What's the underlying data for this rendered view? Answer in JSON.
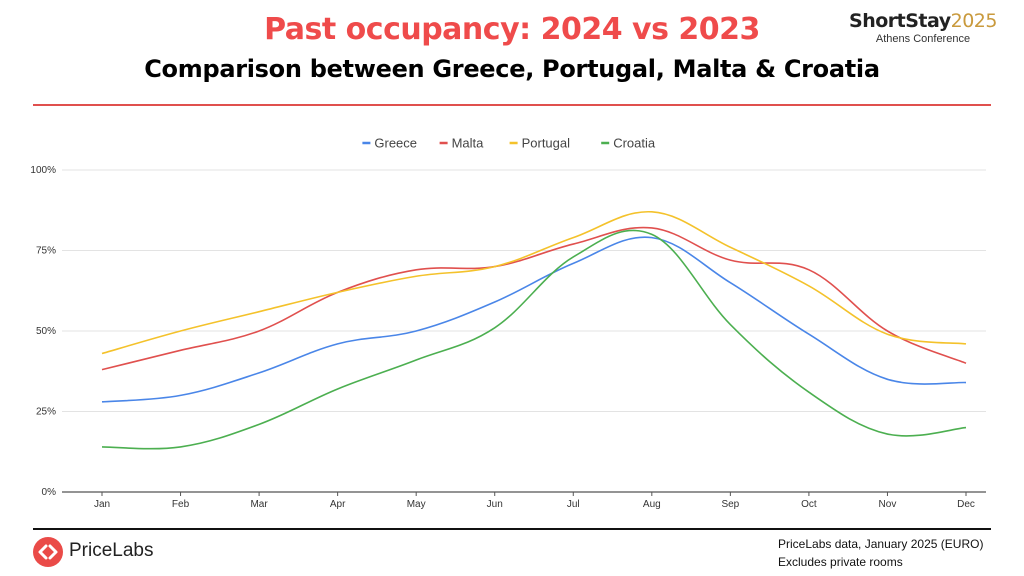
{
  "header": {
    "title": "Past occupancy: 2024 vs 2023",
    "subtitle": "Comparison between Greece, Portugal, Malta & Croatia",
    "title_color": "#ef4b4b"
  },
  "brand": {
    "name": "ShortStay",
    "year": "2025",
    "tagline": "Athens Conference"
  },
  "footer": {
    "logo_text": "PriceLabs",
    "source": "PriceLabs data, January 2025 (EURO)",
    "note": "Excludes private rooms",
    "logo_color": "#ea4b48"
  },
  "chart_data": {
    "type": "line",
    "categories": [
      "Jan",
      "Feb",
      "Mar",
      "Apr",
      "May",
      "Jun",
      "Jul",
      "Aug",
      "Sep",
      "Oct",
      "Nov",
      "Dec"
    ],
    "y_ticks": [
      "0%",
      "25%",
      "50%",
      "75%",
      "100%"
    ],
    "ylim": [
      0,
      100
    ],
    "grid": true,
    "legend_position": "top",
    "series": [
      {
        "name": "Greece",
        "color": "#4a86e8",
        "values": [
          28,
          30,
          37,
          46,
          50,
          59,
          71,
          79,
          65,
          49,
          35,
          34
        ]
      },
      {
        "name": "Malta",
        "color": "#e0504e",
        "values": [
          38,
          44,
          50,
          62,
          69,
          70,
          77,
          82,
          72,
          69,
          50,
          40
        ]
      },
      {
        "name": "Portugal",
        "color": "#f4c22b",
        "values": [
          43,
          50,
          56,
          62,
          67,
          70,
          79,
          87,
          76,
          64,
          49,
          46
        ]
      },
      {
        "name": "Croatia",
        "color": "#4caf50",
        "values": [
          14,
          14,
          21,
          32,
          41,
          51,
          73,
          80,
          52,
          31,
          18,
          20
        ]
      }
    ]
  }
}
